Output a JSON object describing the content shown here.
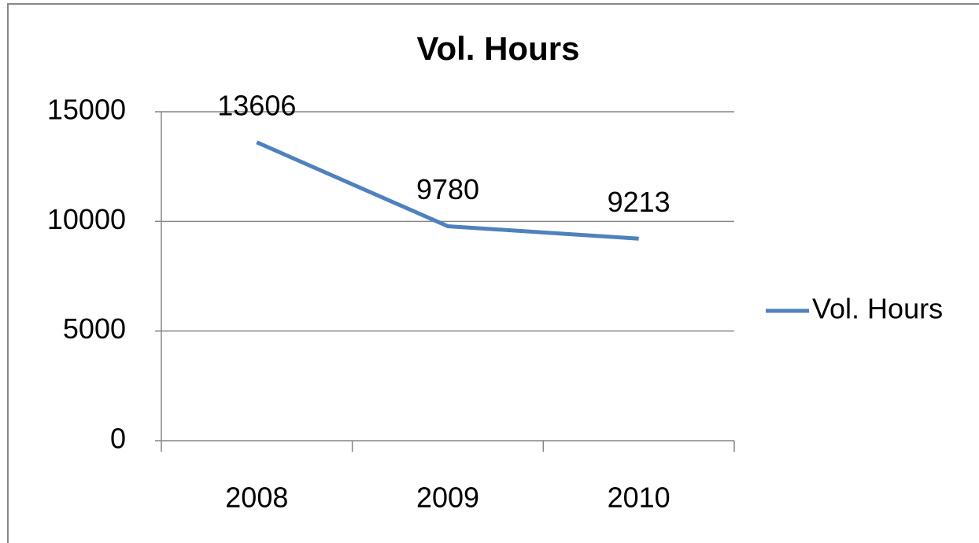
{
  "chart_data": {
    "type": "line",
    "title": "Vol. Hours",
    "categories": [
      "2008",
      "2009",
      "2010"
    ],
    "series": [
      {
        "name": "Vol. Hours",
        "color": "#4f81bd",
        "values": [
          13606,
          9780,
          9213
        ]
      }
    ],
    "ylim": [
      0,
      15000
    ],
    "yticks": [
      0,
      5000,
      10000,
      15000
    ],
    "grid": true,
    "legend": "right"
  }
}
